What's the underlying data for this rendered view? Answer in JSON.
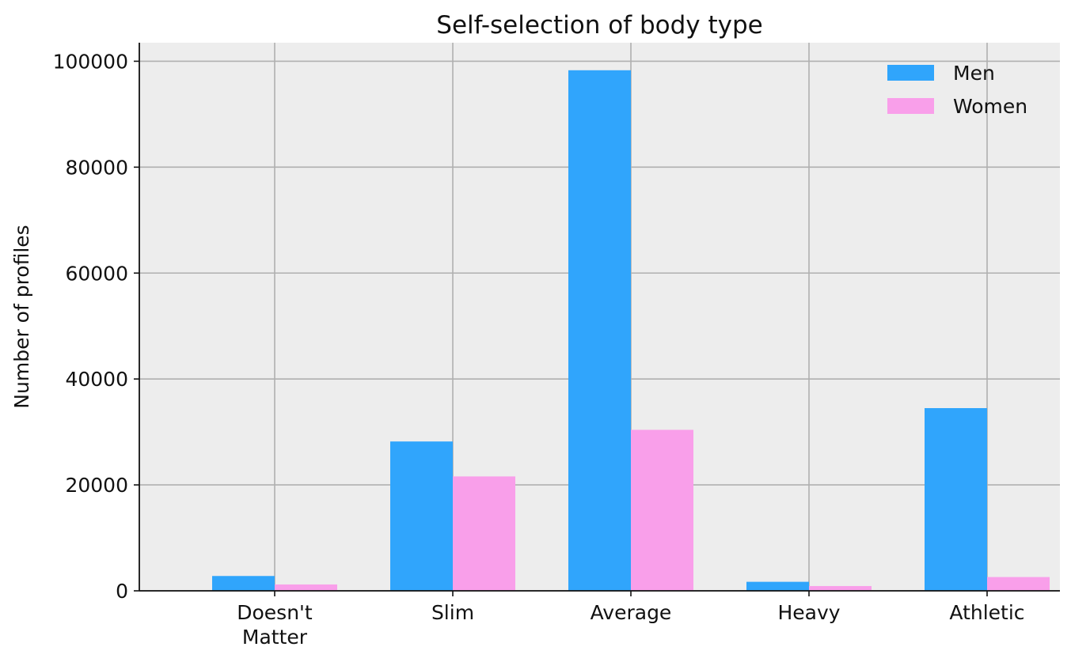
{
  "chart_data": {
    "type": "bar",
    "title": "Self-selection of body type",
    "xlabel": "",
    "ylabel": "Number of profiles",
    "categories": [
      "Doesn't Matter",
      "Slim",
      "Average",
      "Heavy",
      "Athletic"
    ],
    "category_lines": [
      [
        "Doesn't",
        "Matter"
      ],
      [
        "Slim"
      ],
      [
        "Average"
      ],
      [
        "Heavy"
      ],
      [
        "Athletic"
      ]
    ],
    "series": [
      {
        "name": "Men",
        "color": "#30A5FC",
        "values": [
          2800,
          28200,
          98300,
          1700,
          34500
        ]
      },
      {
        "name": "Women",
        "color": "#F99FEA",
        "values": [
          1200,
          21600,
          30400,
          900,
          2600
        ]
      }
    ],
    "ylim": [
      0,
      103500
    ],
    "yticks": [
      0,
      20000,
      40000,
      60000,
      80000,
      100000
    ],
    "ytick_labels": [
      "0",
      "20000",
      "40000",
      "60000",
      "80000",
      "100000"
    ],
    "grid": true,
    "legend_position": "top-right",
    "plot_background": "#EDEDED",
    "grid_color": "#B0B0B0"
  }
}
